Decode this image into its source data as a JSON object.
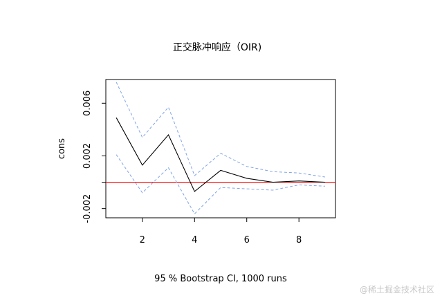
{
  "chart_data": {
    "type": "line",
    "title": "正交脉冲响应（OIR)",
    "xlabel": "95 % Bootstrap CI, 1000 runs",
    "ylabel": "cons",
    "xlim": [
      0.6,
      9.4
    ],
    "ylim": [
      -0.0027,
      0.0078
    ],
    "x_ticks": [
      2,
      4,
      6,
      8
    ],
    "x_tick_labels": [
      "2",
      "4",
      "6",
      "8"
    ],
    "y_ticks": [
      -0.002,
      0.0,
      0.002,
      0.006
    ],
    "y_tick_labels": [
      "-0.002",
      "",
      "0.002",
      "0.006"
    ],
    "x": [
      1,
      2,
      3,
      4,
      5,
      6,
      7,
      8,
      9
    ],
    "series": [
      {
        "role": "irf",
        "values": [
          0.0049,
          0.0013,
          0.0036,
          -0.0007,
          0.0009,
          0.0003,
          0.0,
          0.0001,
          0.0
        ],
        "color": "#000000",
        "style": "solid"
      },
      {
        "role": "upper",
        "values": [
          0.0076,
          0.0034,
          0.0057,
          0.0005,
          0.0022,
          0.0012,
          0.0008,
          0.0007,
          0.0004
        ],
        "color": "#7fa3e8",
        "style": "dashed"
      },
      {
        "role": "lower",
        "values": [
          0.0021,
          -0.0008,
          0.0011,
          -0.0024,
          -0.0004,
          -0.0005,
          -0.0006,
          -0.0002,
          -0.0003
        ],
        "color": "#7fa3e8",
        "style": "dashed"
      }
    ],
    "hline": {
      "y": 0,
      "color": "#ff0000"
    },
    "grid": false,
    "legend": "none"
  },
  "watermark": "@稀土掘金技术社区"
}
